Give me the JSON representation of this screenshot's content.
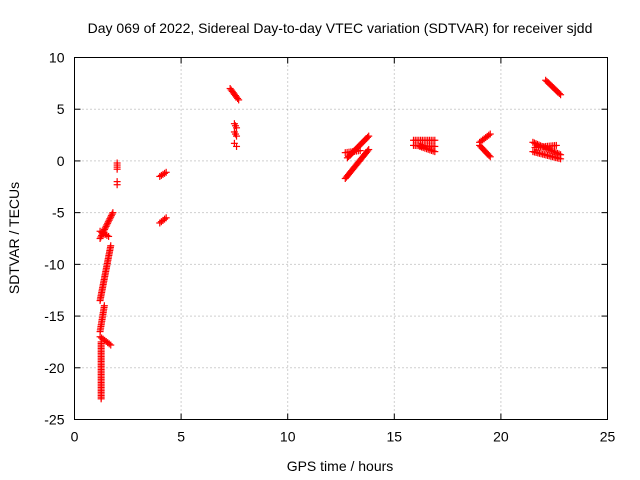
{
  "chart_data": {
    "type": "scatter",
    "title": "Day 069 of 2022, Sidereal Day-to-day VTEC variation (SDTVAR) for receiver sjdd",
    "xlabel": "GPS time / hours",
    "ylabel": "SDTVAR / TECUs",
    "xlim": [
      0,
      25
    ],
    "ylim": [
      -25,
      10
    ],
    "xticks": [
      0,
      5,
      10,
      15,
      20,
      25
    ],
    "yticks": [
      -25,
      -20,
      -15,
      -10,
      -5,
      0,
      5,
      10
    ],
    "grid": true,
    "marker": "+",
    "series_color": "#ff0000",
    "segments": [
      {
        "x": [
          1.2,
          1.8
        ],
        "y": [
          -7.5,
          -5.0
        ]
      },
      {
        "x": [
          1.2,
          1.6
        ],
        "y": [
          -6.8,
          -7.3
        ]
      },
      {
        "x": [
          1.2,
          1.7
        ],
        "y": [
          -13.5,
          -8.2
        ]
      },
      {
        "x": [
          1.2,
          1.4
        ],
        "y": [
          -16.5,
          -14.0
        ]
      },
      {
        "x": [
          1.2,
          1.7
        ],
        "y": [
          -17.0,
          -17.8
        ]
      },
      {
        "x": [
          1.25,
          1.25
        ],
        "y": [
          -17.5,
          -23.0
        ]
      },
      {
        "x": [
          2.0,
          2.0
        ],
        "y": [
          -0.2,
          -0.8
        ]
      },
      {
        "x": [
          2.0,
          2.0
        ],
        "y": [
          -2.0,
          -2.3
        ]
      },
      {
        "x": [
          4.0,
          4.3
        ],
        "y": [
          -1.5,
          -1.1
        ]
      },
      {
        "x": [
          4.0,
          4.3
        ],
        "y": [
          -6.0,
          -5.5
        ]
      },
      {
        "x": [
          7.3,
          7.7
        ],
        "y": [
          7.0,
          5.9
        ]
      },
      {
        "x": [
          7.5,
          7.6
        ],
        "y": [
          3.6,
          3.2
        ]
      },
      {
        "x": [
          7.5,
          7.6
        ],
        "y": [
          2.8,
          2.4
        ]
      },
      {
        "x": [
          7.5,
          7.6
        ],
        "y": [
          1.7,
          1.4
        ]
      },
      {
        "x": [
          12.7,
          13.8
        ],
        "y": [
          -1.7,
          1.1
        ]
      },
      {
        "x": [
          12.8,
          13.8
        ],
        "y": [
          0.3,
          2.4
        ]
      },
      {
        "x": [
          12.7,
          13.4
        ],
        "y": [
          0.8,
          1.0
        ]
      },
      {
        "x": [
          15.9,
          16.9
        ],
        "y": [
          2.0,
          2.0
        ]
      },
      {
        "x": [
          15.9,
          16.9
        ],
        "y": [
          1.5,
          1.4
        ]
      },
      {
        "x": [
          16.2,
          16.9
        ],
        "y": [
          1.4,
          0.9
        ]
      },
      {
        "x": [
          19.0,
          19.5
        ],
        "y": [
          1.8,
          2.6
        ]
      },
      {
        "x": [
          19.0,
          19.5
        ],
        "y": [
          1.5,
          0.4
        ]
      },
      {
        "x": [
          21.5,
          22.8
        ],
        "y": [
          1.8,
          0.6
        ]
      },
      {
        "x": [
          21.5,
          22.8
        ],
        "y": [
          0.9,
          0.2
        ]
      },
      {
        "x": [
          21.6,
          22.6
        ],
        "y": [
          1.3,
          1.5
        ]
      },
      {
        "x": [
          22.1,
          22.8
        ],
        "y": [
          7.8,
          6.4
        ]
      }
    ]
  }
}
